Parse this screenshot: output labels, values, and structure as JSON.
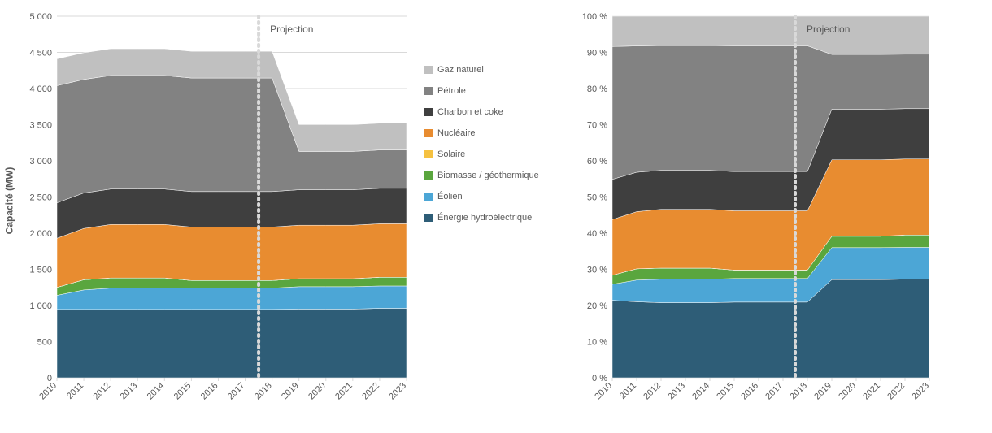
{
  "left_chart": {
    "type": "stacked-area",
    "ylabel": "Capacité (MW)",
    "ylabel_fontsize": 12,
    "label_fontsize": 11,
    "projection_label": "Projection",
    "projection_x": 2017.5,
    "xlim": [
      2010,
      2023
    ],
    "ylim": [
      0,
      5000
    ],
    "ytick_step": 500,
    "yticks": [
      0,
      500,
      1000,
      1500,
      2000,
      2500,
      3000,
      3500,
      4000,
      4500,
      5000
    ],
    "ytick_labels": [
      "0",
      "500",
      "1 000",
      "1 500",
      "2 000",
      "2 500",
      "3 000",
      "3 500",
      "4 000",
      "4 500",
      "5 000"
    ],
    "categories": [
      2010,
      2011,
      2012,
      2013,
      2014,
      2015,
      2016,
      2017,
      2018,
      2019,
      2020,
      2021,
      2022,
      2023
    ],
    "background_color": "#ffffff",
    "grid_color": "#d9d9d9",
    "series": [
      {
        "name": "Énergie hydroélectrique",
        "color": "#2e5d77",
        "values": [
          945,
          945,
          945,
          945,
          945,
          945,
          945,
          945,
          945,
          950,
          950,
          950,
          960,
          960
        ]
      },
      {
        "name": "Éolien",
        "color": "#4ca6d6",
        "values": [
          195,
          270,
          295,
          295,
          295,
          295,
          295,
          295,
          295,
          310,
          310,
          310,
          310,
          310
        ]
      },
      {
        "name": "Biomasse / géothermique",
        "color": "#5aa63e",
        "values": [
          110,
          140,
          140,
          140,
          140,
          105,
          105,
          105,
          105,
          110,
          110,
          110,
          120,
          120
        ]
      },
      {
        "name": "Solaire",
        "color": "#f5c141",
        "values": [
          0,
          0,
          0,
          0,
          0,
          0,
          0,
          0,
          0,
          0,
          0,
          0,
          0,
          0
        ]
      },
      {
        "name": "Nucléaire",
        "color": "#e88c30",
        "values": [
          680,
          710,
          740,
          740,
          740,
          740,
          740,
          740,
          740,
          740,
          740,
          740,
          740,
          740
        ]
      },
      {
        "name": "Charbon et coke",
        "color": "#3f3f3f",
        "values": [
          490,
          490,
          490,
          490,
          490,
          490,
          490,
          490,
          490,
          490,
          490,
          490,
          490,
          490
        ]
      },
      {
        "name": "Pétrole",
        "color": "#828282",
        "values": [
          1620,
          1570,
          1570,
          1570,
          1570,
          1570,
          1570,
          1570,
          1570,
          530,
          530,
          530,
          530,
          530
        ]
      },
      {
        "name": "Gaz naturel",
        "color": "#c0c0c0",
        "values": [
          370,
          370,
          370,
          370,
          370,
          370,
          370,
          370,
          370,
          370,
          370,
          370,
          370,
          370
        ]
      }
    ]
  },
  "right_chart": {
    "type": "stacked-area-percent",
    "projection_label": "Projection",
    "projection_x": 2017.5,
    "xlim": [
      2010,
      2023
    ],
    "ylim": [
      0,
      100
    ],
    "ytick_step": 10,
    "yticks": [
      0,
      10,
      20,
      30,
      40,
      50,
      60,
      70,
      80,
      90,
      100
    ],
    "ytick_labels": [
      "0 %",
      "10 %",
      "20 %",
      "30 %",
      "40 %",
      "50 %",
      "60 %",
      "70 %",
      "80 %",
      "90 %",
      "100 %"
    ],
    "categories": [
      2010,
      2011,
      2012,
      2013,
      2014,
      2015,
      2016,
      2017,
      2018,
      2019,
      2020,
      2021,
      2022,
      2023
    ],
    "background_color": "#ffffff",
    "grid_color": "#d9d9d9"
  },
  "legend": {
    "items": [
      {
        "label": "Gaz naturel",
        "color": "#c0c0c0"
      },
      {
        "label": "Pétrole",
        "color": "#828282"
      },
      {
        "label": "Charbon et coke",
        "color": "#3f3f3f"
      },
      {
        "label": "Nucléaire",
        "color": "#e88c30"
      },
      {
        "label": "Solaire",
        "color": "#f5c141"
      },
      {
        "label": "Biomasse / géothermique",
        "color": "#5aa63e"
      },
      {
        "label": "Éolien",
        "color": "#4ca6d6"
      },
      {
        "label": "Énergie hydroélectrique",
        "color": "#2e5d77"
      }
    ]
  }
}
